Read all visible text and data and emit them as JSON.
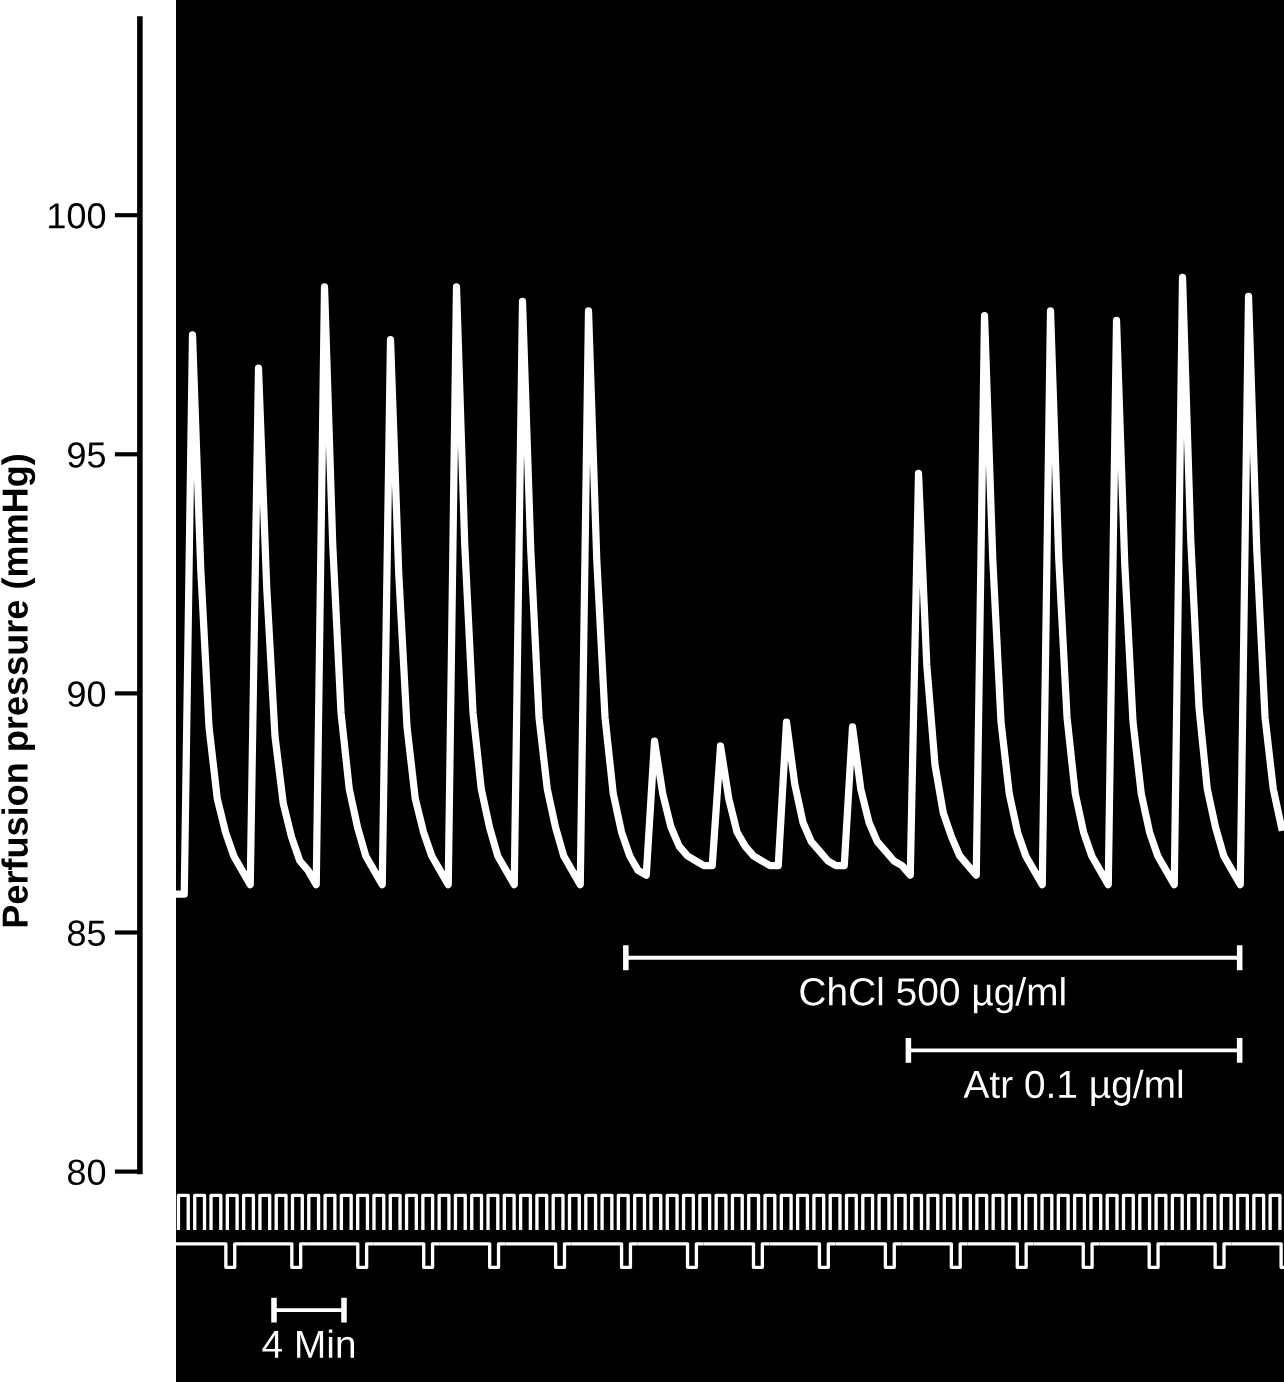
{
  "chart_data": {
    "type": "line",
    "ylabel": "Perfusion pressure (mmHg)",
    "categories": [
      null,
      null,
      null,
      null,
      null,
      null,
      null,
      null,
      null,
      null,
      null,
      null,
      null,
      null,
      null,
      null,
      null,
      null,
      null,
      null,
      null,
      null,
      null,
      null,
      null,
      null,
      null,
      null,
      null,
      null,
      null,
      null,
      null,
      null,
      null,
      null,
      null,
      null,
      null,
      null,
      null,
      null,
      null,
      null,
      null,
      null,
      null,
      null,
      null,
      null,
      null,
      null,
      null,
      null,
      null,
      null,
      null,
      null,
      null,
      null,
      null,
      null,
      null,
      null,
      null,
      null,
      null,
      null,
      null,
      null,
      null,
      null,
      null,
      null,
      null,
      null,
      null,
      null,
      null,
      null,
      null,
      null,
      null,
      null,
      null,
      null,
      null,
      null,
      null,
      null,
      null,
      null,
      null,
      null,
      null,
      null,
      null,
      null,
      null,
      null,
      null,
      null,
      null,
      null,
      null,
      null,
      null,
      null,
      null,
      null,
      null,
      null,
      null,
      null,
      null,
      null,
      null,
      null,
      null,
      null,
      null,
      null,
      null,
      null,
      null,
      null,
      null,
      null,
      null,
      null,
      null,
      null,
      null,
      null,
      null
    ],
    "series": [
      {
        "color": "#ffffff",
        "values": [
          85.8,
          85.8,
          97.5,
          92.6,
          89.3,
          87.8,
          87.1,
          86.6,
          86.3,
          86.0,
          96.8,
          92.2,
          89.1,
          87.7,
          87.0,
          86.5,
          86.3,
          86.0,
          98.5,
          93.1,
          89.6,
          88.0,
          87.2,
          86.6,
          86.3,
          86.0,
          97.4,
          92.5,
          89.3,
          87.8,
          87.1,
          86.6,
          86.3,
          86.0,
          98.5,
          93.1,
          89.6,
          88.0,
          87.2,
          86.6,
          86.3,
          86.0,
          98.2,
          93.0,
          89.5,
          88.0,
          87.2,
          86.6,
          86.3,
          86.0,
          98.0,
          92.8,
          89.5,
          87.9,
          87.1,
          86.6,
          86.3,
          86.2,
          89.0,
          87.9,
          87.2,
          86.8,
          86.6,
          86.5,
          86.4,
          86.4,
          88.9,
          87.8,
          87.1,
          86.8,
          86.6,
          86.5,
          86.4,
          86.4,
          89.4,
          88.1,
          87.3,
          86.9,
          86.7,
          86.5,
          86.4,
          86.4,
          89.3,
          88.0,
          87.3,
          86.9,
          86.7,
          86.5,
          86.4,
          86.2,
          94.6,
          90.6,
          88.5,
          87.5,
          87.0,
          86.6,
          86.4,
          86.2,
          97.9,
          92.8,
          89.4,
          87.9,
          87.1,
          86.6,
          86.3,
          86.0,
          98.0,
          92.8,
          89.5,
          87.9,
          87.1,
          86.6,
          86.3,
          86.0,
          97.8,
          92.7,
          89.4,
          87.9,
          87.1,
          86.6,
          86.3,
          86.0,
          98.7,
          93.2,
          89.7,
          88.0,
          87.2,
          86.6,
          86.3,
          86.0,
          98.3,
          93.0,
          89.5,
          88.0,
          87.2
        ]
      }
    ],
    "ylim": [
      75.6,
      104.5
    ],
    "yticks": [
      80,
      85,
      90,
      95,
      100
    ],
    "annotations": [
      "ChCl 500 µg/ml",
      "Atr 0.1 µg/ml",
      "4 Min"
    ],
    "tick_labels": "y",
    "grid": false,
    "legend": false,
    "marker": "none",
    "line_style": "solid"
  }
}
